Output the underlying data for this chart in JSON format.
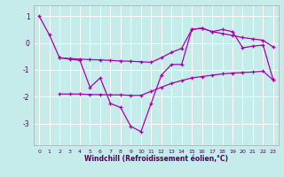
{
  "xlabel": "Windchill (Refroidissement éolien,°C)",
  "background_color": "#c5eceb",
  "grid_color": "#ffffff",
  "line_color": "#aa00aa",
  "xlim": [
    -0.5,
    23.5
  ],
  "ylim": [
    -3.8,
    1.4
  ],
  "xticks": [
    0,
    1,
    2,
    3,
    4,
    5,
    6,
    7,
    8,
    9,
    10,
    11,
    12,
    13,
    14,
    15,
    16,
    17,
    18,
    19,
    20,
    21,
    22,
    23
  ],
  "yticks": [
    -3,
    -2,
    -1,
    0,
    1
  ],
  "line1_x": [
    0,
    1,
    2,
    3,
    4,
    5,
    6,
    7,
    8,
    9,
    10,
    11,
    12,
    13,
    14,
    15,
    16,
    17,
    18,
    19,
    20,
    21,
    22,
    23
  ],
  "line1_y": [
    1.0,
    0.3,
    -0.55,
    -0.6,
    -0.65,
    -1.65,
    -1.3,
    -2.25,
    -2.4,
    -3.1,
    -3.3,
    -2.25,
    -1.2,
    -0.8,
    -0.8,
    0.5,
    0.55,
    0.42,
    0.5,
    0.42,
    -0.18,
    -0.12,
    -0.08,
    -1.38
  ],
  "line2_x": [
    2,
    3,
    4,
    5,
    6,
    7,
    8,
    9,
    10,
    11,
    12,
    13,
    14,
    15,
    16,
    17,
    18,
    19,
    20,
    21,
    22,
    23
  ],
  "line2_y": [
    -0.55,
    -0.58,
    -0.6,
    -0.62,
    -0.63,
    -0.65,
    -0.67,
    -0.68,
    -0.7,
    -0.72,
    -0.55,
    -0.35,
    -0.2,
    0.5,
    0.55,
    0.42,
    0.35,
    0.28,
    0.2,
    0.15,
    0.1,
    -0.15
  ],
  "line3_x": [
    2,
    3,
    4,
    5,
    6,
    7,
    8,
    9,
    10,
    11,
    12,
    13,
    14,
    15,
    16,
    17,
    18,
    19,
    20,
    21,
    22,
    23
  ],
  "line3_y": [
    -1.9,
    -1.9,
    -1.9,
    -1.92,
    -1.92,
    -1.93,
    -1.93,
    -1.95,
    -1.95,
    -1.8,
    -1.65,
    -1.5,
    -1.4,
    -1.3,
    -1.25,
    -1.2,
    -1.15,
    -1.12,
    -1.1,
    -1.08,
    -1.05,
    -1.38
  ]
}
